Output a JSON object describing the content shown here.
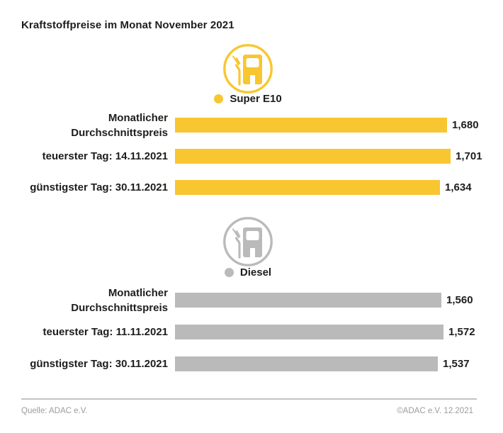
{
  "title": "Kraftstoffpreise im Monat November 2021",
  "groups": [
    {
      "id": "super-e10",
      "legend": "Super E10",
      "color": "#F8C630",
      "icon": "fuel-pump-icon",
      "rows": [
        {
          "label": "Monatlicher Durchschnittspreis",
          "value": 1.68,
          "value_label": "1,680"
        },
        {
          "label": "teuerster Tag: 14.11.2021",
          "value": 1.701,
          "value_label": "1,701"
        },
        {
          "label": "günstigster Tag: 30.11.2021",
          "value": 1.634,
          "value_label": "1,634"
        }
      ]
    },
    {
      "id": "diesel",
      "legend": "Diesel",
      "color": "#BABABA",
      "icon": "fuel-pump-icon",
      "rows": [
        {
          "label": "Monatlicher Durchschnittspreis",
          "value": 1.56,
          "value_label": "1,560"
        },
        {
          "label": "teuerster Tag: 11.11.2021",
          "value": 1.572,
          "value_label": "1,572"
        },
        {
          "label": "günstigster Tag: 30.11.2021",
          "value": 1.537,
          "value_label": "1,537"
        }
      ]
    }
  ],
  "footer": {
    "source": "Quelle: ADAC e.V.",
    "copyright": "©ADAC e.V. 12.2021"
  },
  "chart_data": {
    "type": "bar",
    "orientation": "horizontal",
    "title": "Kraftstoffpreise im Monat November 2021",
    "value_format": "comma-decimal (EUR)",
    "series": [
      {
        "name": "Super E10",
        "color": "#F8C630",
        "points": [
          {
            "label": "Monatlicher Durchschnittspreis",
            "value": 1.68
          },
          {
            "label": "teuerster Tag: 14.11.2021",
            "value": 1.701
          },
          {
            "label": "günstigster Tag: 30.11.2021",
            "value": 1.634
          }
        ]
      },
      {
        "name": "Diesel",
        "color": "#BABABA",
        "points": [
          {
            "label": "Monatlicher Durchschnittspreis",
            "value": 1.56
          },
          {
            "label": "teuerster Tag: 11.11.2021",
            "value": 1.572
          },
          {
            "label": "günstigster Tag: 30.11.2021",
            "value": 1.537
          }
        ]
      }
    ],
    "legend_position": "above each series, centered",
    "grid": false,
    "source": "Quelle: ADAC e.V."
  }
}
